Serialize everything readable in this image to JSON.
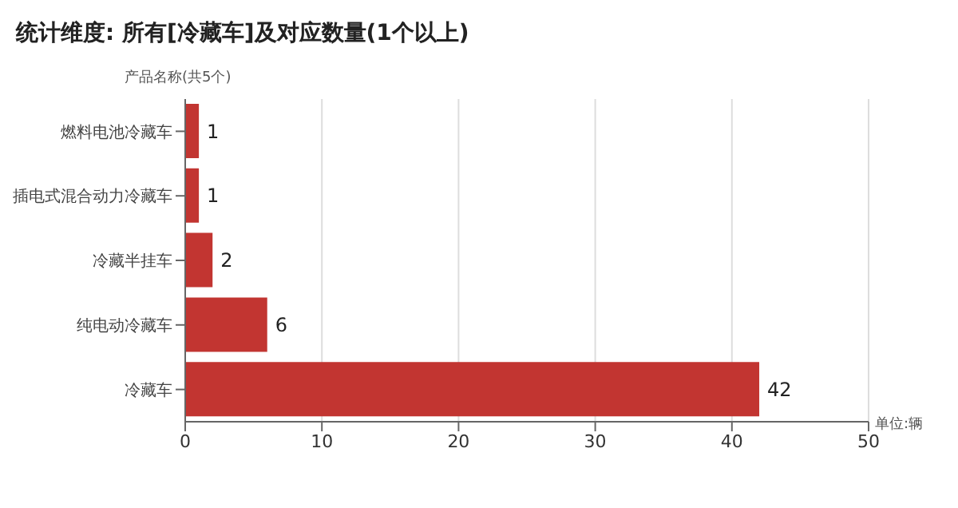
{
  "chart_data": {
    "type": "bar",
    "orientation": "horizontal",
    "title": "统计维度: 所有[冷藏车]及对应数量(1个以上)",
    "ylabel": "产品名称(共5个)",
    "xlabel": "单位:辆",
    "categories": [
      "燃料电池冷藏车",
      "插电式混合动力冷藏车",
      "冷藏半挂车",
      "纯电动冷藏车",
      "冷藏车"
    ],
    "values": [
      1,
      1,
      2,
      6,
      42
    ],
    "color": "#c23531",
    "xlim": [
      0,
      50
    ],
    "xticks": [
      0,
      10,
      20,
      30,
      40,
      50
    ],
    "grid": "x",
    "data_labels": true
  }
}
